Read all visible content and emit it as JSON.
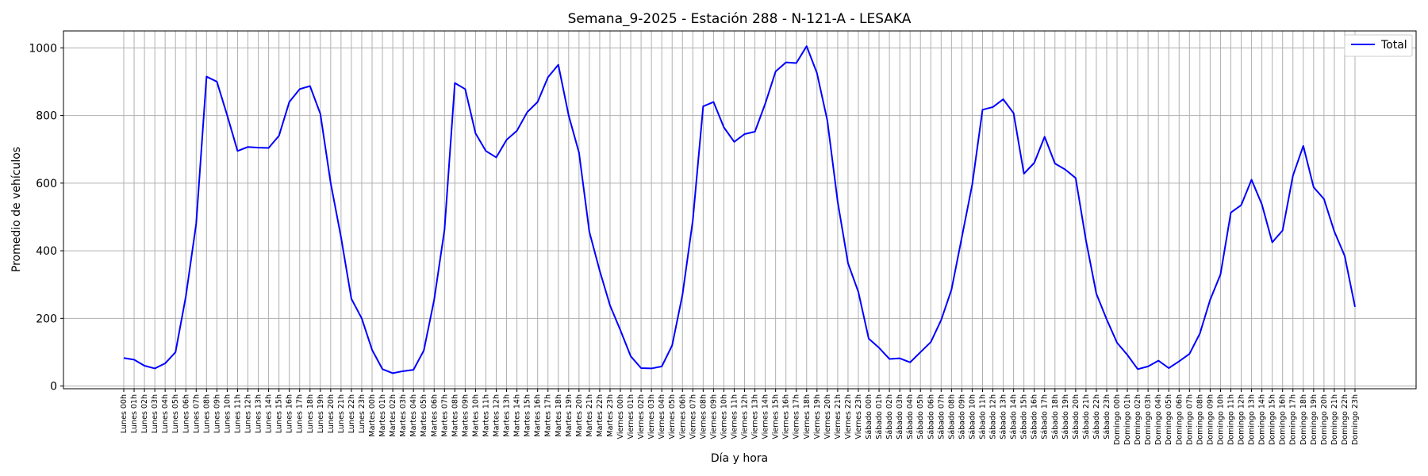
{
  "chart_data": {
    "type": "line",
    "title": "Semana_9-2025 - Estación 288 - N-121-A  - LESAKA",
    "xlabel": "Día y hora",
    "ylabel": "Promedio de vehículos",
    "ylim": [
      -8,
      1050
    ],
    "yticks": [
      0,
      200,
      400,
      600,
      800,
      1000
    ],
    "grid": true,
    "legend_position": "top-right",
    "line_color": "#0000ff",
    "categories": [
      "Lunes 00h",
      "Lunes 01h",
      "Lunes 02h",
      "Lunes 03h",
      "Lunes 04h",
      "Lunes 05h",
      "Lunes 06h",
      "Lunes 07h",
      "Lunes 08h",
      "Lunes 09h",
      "Lunes 10h",
      "Lunes 11h",
      "Lunes 12h",
      "Lunes 13h",
      "Lunes 14h",
      "Lunes 15h",
      "Lunes 16h",
      "Lunes 17h",
      "Lunes 18h",
      "Lunes 19h",
      "Lunes 20h",
      "Lunes 21h",
      "Lunes 22h",
      "Lunes 23h",
      "Martes 00h",
      "Martes 01h",
      "Martes 02h",
      "Martes 03h",
      "Martes 04h",
      "Martes 05h",
      "Martes 06h",
      "Martes 07h",
      "Martes 08h",
      "Martes 09h",
      "Martes 10h",
      "Martes 11h",
      "Martes 12h",
      "Martes 13h",
      "Martes 14h",
      "Martes 15h",
      "Martes 16h",
      "Martes 17h",
      "Martes 18h",
      "Martes 19h",
      "Martes 20h",
      "Martes 21h",
      "Martes 22h",
      "Martes 23h",
      "Viernes 00h",
      "Viernes 01h",
      "Viernes 02h",
      "Viernes 03h",
      "Viernes 04h",
      "Viernes 05h",
      "Viernes 06h",
      "Viernes 07h",
      "Viernes 08h",
      "Viernes 09h",
      "Viernes 10h",
      "Viernes 11h",
      "Viernes 12h",
      "Viernes 13h",
      "Viernes 14h",
      "Viernes 15h",
      "Viernes 16h",
      "Viernes 17h",
      "Viernes 18h",
      "Viernes 19h",
      "Viernes 20h",
      "Viernes 21h",
      "Viernes 22h",
      "Viernes 23h",
      "Sábado 00h",
      "Sábado 01h",
      "Sábado 02h",
      "Sábado 03h",
      "Sábado 04h",
      "Sábado 05h",
      "Sábado 06h",
      "Sábado 07h",
      "Sábado 08h",
      "Sábado 09h",
      "Sábado 10h",
      "Sábado 11h",
      "Sábado 12h",
      "Sábado 13h",
      "Sábado 14h",
      "Sábado 15h",
      "Sábado 16h",
      "Sábado 17h",
      "Sábado 18h",
      "Sábado 19h",
      "Sábado 20h",
      "Sábado 21h",
      "Sábado 22h",
      "Sábado 23h",
      "Domingo 00h",
      "Domingo 01h",
      "Domingo 02h",
      "Domingo 03h",
      "Domingo 04h",
      "Domingo 05h",
      "Domingo 06h",
      "Domingo 07h",
      "Domingo 08h",
      "Domingo 09h",
      "Domingo 10h",
      "Domingo 11h",
      "Domingo 12h",
      "Domingo 13h",
      "Domingo 14h",
      "Domingo 15h",
      "Domingo 16h",
      "Domingo 17h",
      "Domingo 18h",
      "Domingo 19h",
      "Domingo 20h",
      "Domingo 21h",
      "Domingo 22h",
      "Domingo 23h"
    ],
    "series": [
      {
        "name": "Total",
        "values": [
          83,
          78,
          60,
          52,
          67,
          100,
          265,
          480,
          915,
          900,
          800,
          695,
          707,
          705,
          704,
          740,
          840,
          878,
          887,
          805,
          600,
          440,
          258,
          200,
          107,
          50,
          38,
          44,
          48,
          105,
          255,
          462,
          896,
          878,
          747,
          695,
          676,
          728,
          755,
          810,
          840,
          913,
          950,
          800,
          690,
          456,
          341,
          238,
          165,
          88,
          53,
          52,
          58,
          120,
          270,
          490,
          827,
          840,
          765,
          722,
          745,
          752,
          835,
          930,
          957,
          955,
          1005,
          925,
          785,
          545,
          363,
          278,
          140,
          113,
          80,
          82,
          70,
          100,
          130,
          195,
          285,
          440,
          595,
          817,
          825,
          848,
          807,
          628,
          660,
          737,
          658,
          640,
          615,
          430,
          273,
          197,
          128,
          92,
          50,
          58,
          75,
          53,
          73,
          95,
          155,
          255,
          330,
          513,
          535,
          610,
          537,
          425,
          460,
          622,
          710,
          588,
          553,
          457,
          385,
          234
        ]
      }
    ]
  }
}
